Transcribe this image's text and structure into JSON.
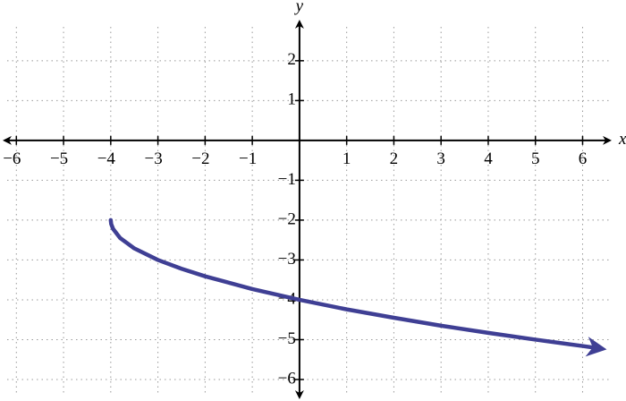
{
  "chart_data": {
    "type": "line",
    "x": [
      -4,
      -3.99,
      -3.95,
      -3.8,
      -3.5,
      -3,
      -2.5,
      -2,
      -1,
      0,
      1,
      2,
      3,
      4,
      5,
      6,
      6.3
    ],
    "series": [
      {
        "color": "#3f3f94",
        "values": [
          -2,
          -2.1,
          -2.22,
          -2.45,
          -2.71,
          -3,
          -3.22,
          -3.41,
          -3.73,
          -4,
          -4.24,
          -4.45,
          -4.65,
          -4.83,
          -5,
          -5.16,
          -5.21
        ]
      }
    ],
    "xlabel": "x",
    "ylabel": "y",
    "xlim": [
      -6.29,
      6.73
    ],
    "ylim": [
      -6.36,
      3.03
    ],
    "xticks": [
      {
        "value": -6,
        "label": "−6"
      },
      {
        "value": -5,
        "label": "−5"
      },
      {
        "value": -4,
        "label": "−4"
      },
      {
        "value": -3,
        "label": "−3"
      },
      {
        "value": -2,
        "label": "−2"
      },
      {
        "value": -1,
        "label": "−1"
      },
      1,
      2,
      3,
      4,
      5,
      6
    ],
    "yticks": [
      {
        "value": -6,
        "label": "−6"
      },
      {
        "value": -5,
        "label": "−5"
      },
      {
        "value": -4,
        "label": "−4"
      },
      {
        "value": -3,
        "label": "−3"
      },
      {
        "value": -2,
        "label": "−2"
      },
      {
        "value": -1,
        "label": "−1"
      },
      1,
      2
    ],
    "grid": true
  }
}
